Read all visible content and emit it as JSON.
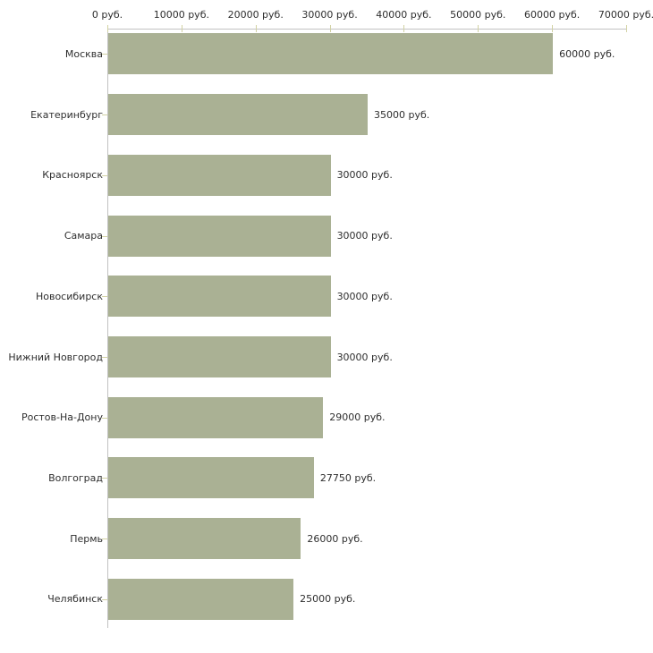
{
  "chart_data": {
    "type": "bar",
    "orientation": "horizontal",
    "title": "",
    "categories": [
      "Москва",
      "Екатеринбург",
      "Красноярск",
      "Самара",
      "Новосибирск",
      "Нижний Новгород",
      "Ростов-На-Дону",
      "Волгоград",
      "Пермь",
      "Челябинск"
    ],
    "values": [
      60000,
      35000,
      30000,
      30000,
      30000,
      30000,
      29000,
      27750,
      26000,
      25000
    ],
    "value_labels": [
      "60000 руб.",
      "35000 руб.",
      "30000 руб.",
      "30000 руб.",
      "30000 руб.",
      "30000 руб.",
      "29000 руб.",
      "27750 руб.",
      "26000 руб.",
      "25000 руб."
    ],
    "x_axis": {
      "range": [
        0,
        70000
      ],
      "ticks": [
        0,
        10000,
        20000,
        30000,
        40000,
        50000,
        60000,
        70000
      ],
      "tick_labels": [
        "0 руб.",
        "10000 руб.",
        "20000 руб.",
        "30000 руб.",
        "40000 руб.",
        "50000 руб.",
        "60000 руб.",
        "70000 руб."
      ],
      "position": "top"
    },
    "grid": false,
    "legend": false,
    "colors": {
      "bar": "#aab194",
      "axis_line": "#c2c2c2",
      "tick_mark": "#d2d2a4",
      "text": "#2e2e2e",
      "background": "#ffffff"
    }
  }
}
